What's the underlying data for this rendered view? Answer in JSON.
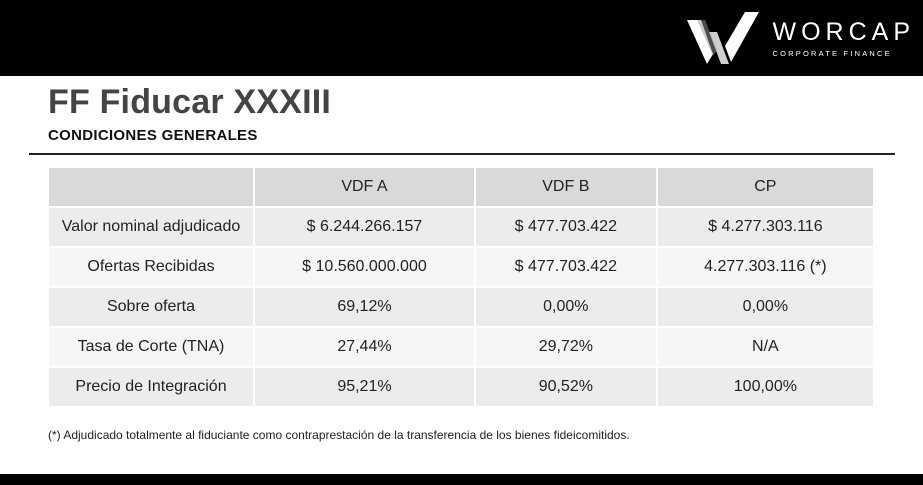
{
  "brand": {
    "name": "WORCAP",
    "tagline": "CORPORATE FINANCE"
  },
  "header": {
    "title": "FF Fiducar XXXIII",
    "subtitle": "CONDICIONES GENERALES"
  },
  "table": {
    "columns": [
      "",
      "VDF A",
      "VDF B",
      "CP"
    ],
    "rows": [
      {
        "label": "Valor nominal adjudicado",
        "values": [
          "$ 6.244.266.157",
          "$ 477.703.422",
          "$ 4.277.303.116"
        ]
      },
      {
        "label": "Ofertas Recibidas",
        "values": [
          "$ 10.560.000.000",
          "$ 477.703.422",
          "4.277.303.116 (*)"
        ]
      },
      {
        "label": "Sobre oferta",
        "values": [
          "69,12%",
          "0,00%",
          "0,00%"
        ]
      },
      {
        "label": "Tasa de Corte (TNA)",
        "values": [
          "27,44%",
          "29,72%",
          "N/A"
        ]
      },
      {
        "label": "Precio de Integración",
        "values": [
          "95,21%",
          "90,52%",
          "100,00%"
        ]
      }
    ]
  },
  "footnote": "(*) Adjudicado totalmente al fiduciante como contraprestación de la transferencia de los bienes fideicomitidos.",
  "colors": {
    "topbar": "#000000",
    "header_cell": "#d9d9d9",
    "row_odd": "#ececec",
    "row_even": "#f6f6f6",
    "title": "#444444"
  }
}
